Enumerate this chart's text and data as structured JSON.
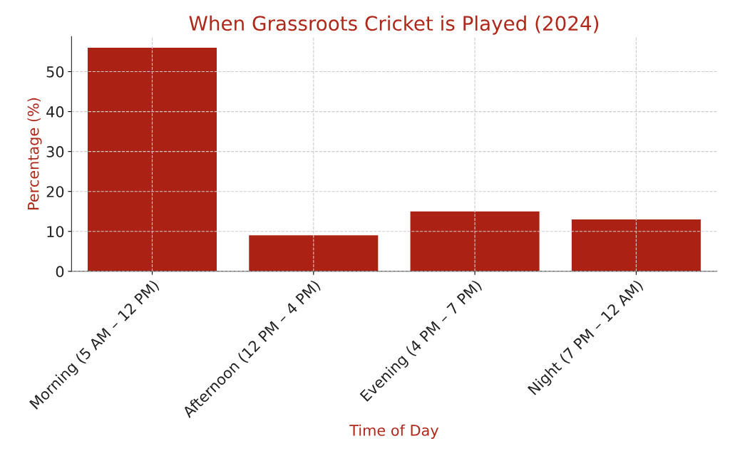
{
  "chart_data": {
    "type": "bar",
    "title": "When Grassroots Cricket is Played (2024)",
    "xlabel": "Time of Day",
    "ylabel": "Percentage (%)",
    "categories": [
      "Morning (5 AM – 12 PM)",
      "Afternoon (12 PM – 4 PM)",
      "Evening (4 PM – 7 PM)",
      "Night (7 PM – 12 AM)"
    ],
    "values": [
      56,
      9,
      15,
      13
    ],
    "color": "#ab2215",
    "ylim": [
      0,
      58.8
    ],
    "yticks": [
      0,
      10,
      20,
      30,
      40,
      50
    ],
    "grid": true
  }
}
